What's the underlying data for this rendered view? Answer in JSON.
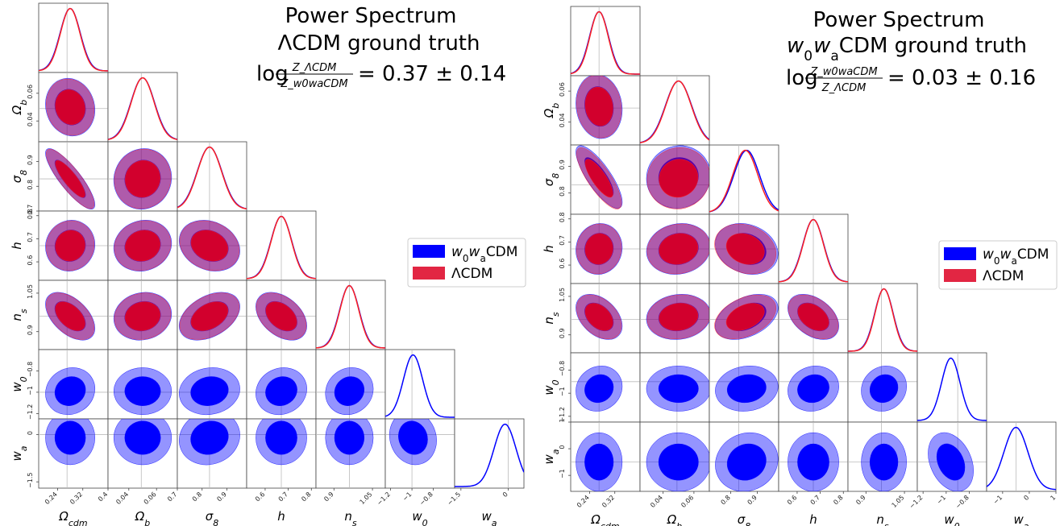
{
  "chart_data": [
    {
      "type": "corner",
      "title": "Power Spectrum",
      "subtitle": "ΛCDM ground truth",
      "evidence": {
        "numerator": "Z_ΛCDM",
        "denominator": "Z_w0waCDM",
        "value": "= 0.37 ± 0.14"
      },
      "params": [
        {
          "key": "Ocdm",
          "label": "Ω_cdm",
          "range": [
            0.18,
            0.4
          ],
          "ticks": [
            0.24,
            0.32,
            0.4
          ],
          "truth": 0.27
        },
        {
          "key": "Ob",
          "label": "Ω_b",
          "range": [
            0.025,
            0.075
          ],
          "ticks": [
            0.04,
            0.06
          ],
          "truth": 0.049
        },
        {
          "key": "s8",
          "label": "σ_8",
          "range": [
            0.7,
            0.98
          ],
          "ticks": [
            0.7,
            0.8,
            0.9
          ],
          "truth": 0.83
        },
        {
          "key": "h",
          "label": "h",
          "range": [
            0.52,
            0.82
          ],
          "ticks": [
            0.6,
            0.7,
            0.8
          ],
          "truth": 0.67
        },
        {
          "key": "ns",
          "label": "n_s",
          "range": [
            0.83,
            1.1
          ],
          "ticks": [
            0.9,
            1.05
          ],
          "truth": 0.96
        },
        {
          "key": "w0",
          "label": "w_0",
          "range": [
            -1.25,
            -0.6
          ],
          "ticks": [
            -1.2,
            -1.0,
            -0.8
          ],
          "truth": -1.0
        },
        {
          "key": "wa",
          "label": "w_a",
          "range": [
            -1.7,
            0.5
          ],
          "ticks": [
            -1.5,
            0.0
          ],
          "truth": 0.0
        }
      ],
      "series": [
        {
          "name": "w_0w_aCDM",
          "color": "#0000ff",
          "fill": "#0000ff",
          "means": [
            0.28,
            0.05,
            0.83,
            0.67,
            0.96,
            -0.99,
            -0.1
          ],
          "sigmas": [
            0.032,
            0.0085,
            0.05,
            0.045,
            0.038,
            0.09,
            0.35
          ]
        },
        {
          "name": "ΛCDM",
          "color": "#ff2020",
          "fill": "#dd0022",
          "means": [
            0.28,
            0.05,
            0.83,
            0.67,
            0.96
          ],
          "sigmas": [
            0.031,
            0.0083,
            0.049,
            0.044,
            0.037
          ]
        }
      ],
      "correlations": [
        [
          1,
          -0.1,
          -0.85,
          0.05,
          -0.5,
          0.1,
          0.0
        ],
        [
          -0.1,
          1,
          0.05,
          0.1,
          0.1,
          0.0,
          0.0
        ],
        [
          -0.85,
          0.05,
          1,
          -0.2,
          0.4,
          0.1,
          0.1
        ],
        [
          0.05,
          0.1,
          -0.2,
          1,
          -0.4,
          0.1,
          0.0
        ],
        [
          -0.5,
          0.1,
          0.4,
          -0.4,
          1,
          0.1,
          0.0
        ],
        [
          0.1,
          0.0,
          0.1,
          0.1,
          0.1,
          1,
          -0.1
        ],
        [
          0.0,
          0.0,
          0.1,
          0.0,
          0.0,
          -0.1,
          1
        ]
      ]
    },
    {
      "type": "corner",
      "title": "Power Spectrum",
      "subtitle": "w_0w_aCDM ground truth",
      "evidence": {
        "numerator": "Z_w0waCDM",
        "denominator": "Z_ΛCDM",
        "value": "= 0.03 ± 0.16"
      },
      "params": [
        {
          "key": "Ocdm",
          "label": "Ω_cdm",
          "range": [
            0.18,
            0.4
          ],
          "ticks": [
            0.24,
            0.32
          ],
          "truth": 0.27
        },
        {
          "key": "Ob",
          "label": "Ω_b",
          "range": [
            0.025,
            0.07
          ],
          "ticks": [
            0.04,
            0.06
          ],
          "truth": 0.049
        },
        {
          "key": "s8",
          "label": "σ_8",
          "range": [
            0.72,
            0.98
          ],
          "ticks": [
            0.8,
            0.9
          ],
          "truth": 0.83
        },
        {
          "key": "h",
          "label": "h",
          "range": [
            0.52,
            0.82
          ],
          "ticks": [
            0.6,
            0.7,
            0.8
          ],
          "truth": 0.67
        },
        {
          "key": "ns",
          "label": "n_s",
          "range": [
            0.83,
            1.1
          ],
          "ticks": [
            0.9,
            1.05
          ],
          "truth": 0.96
        },
        {
          "key": "w0",
          "label": "w_0",
          "range": [
            -1.25,
            -0.65
          ],
          "ticks": [
            -1.2,
            -1.0,
            -0.8
          ],
          "truth": -0.9
        },
        {
          "key": "wa",
          "label": "w_a",
          "range": [
            -1.6,
            1.0
          ],
          "ticks": [
            -1,
            0,
            1
          ],
          "truth": -0.5
        }
      ],
      "series": [
        {
          "name": "w_0w_aCDM",
          "color": "#0000ff",
          "fill": "#0000ff",
          "means": [
            0.27,
            0.05,
            0.86,
            0.67,
            0.97,
            -0.96,
            -0.5
          ],
          "sigmas": [
            0.03,
            0.0085,
            0.048,
            0.045,
            0.036,
            0.08,
            0.45
          ]
        },
        {
          "name": "ΛCDM",
          "color": "#ff2020",
          "fill": "#dd0022",
          "means": [
            0.27,
            0.05,
            0.855,
            0.67,
            0.97
          ],
          "sigmas": [
            0.029,
            0.0083,
            0.047,
            0.044,
            0.035
          ]
        }
      ],
      "correlations": [
        [
          1,
          -0.1,
          -0.8,
          0.05,
          -0.4,
          0.1,
          0.0
        ],
        [
          -0.1,
          1,
          0.05,
          0.1,
          0.1,
          0.0,
          0.0
        ],
        [
          -0.8,
          0.05,
          1,
          -0.2,
          0.4,
          0.1,
          0.1
        ],
        [
          0.05,
          0.1,
          -0.2,
          1,
          -0.4,
          0.1,
          0.0
        ],
        [
          -0.4,
          0.1,
          0.4,
          -0.4,
          1,
          0.1,
          0.0
        ],
        [
          0.1,
          0.0,
          0.1,
          0.1,
          0.1,
          1,
          -0.3
        ],
        [
          0.0,
          0.0,
          0.1,
          0.0,
          0.0,
          -0.3,
          1
        ]
      ]
    }
  ]
}
